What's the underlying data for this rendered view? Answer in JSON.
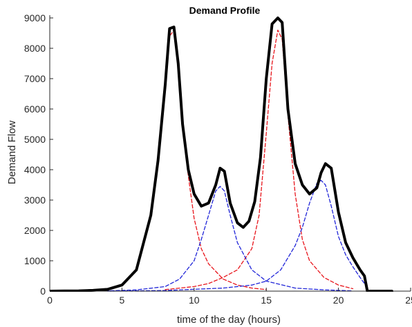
{
  "chart_data": {
    "type": "line",
    "title": "Demand Profile",
    "xlabel": "time of the day (hours)",
    "ylabel": "Demand Flow",
    "xlim": [
      0,
      25
    ],
    "ylim": [
      0,
      9000
    ],
    "xticks": [
      0,
      5,
      10,
      15,
      20,
      25
    ],
    "yticks": [
      0,
      1000,
      2000,
      3000,
      4000,
      5000,
      6000,
      7000,
      8000,
      9000
    ],
    "xtick_labels": [
      "0",
      "5",
      "10",
      "15",
      "20",
      "25"
    ],
    "ytick_labels": [
      "0",
      "1000",
      "2000",
      "3000",
      "4000",
      "5000",
      "6000",
      "7000",
      "8000",
      "9000"
    ],
    "grid": false,
    "colors": {
      "total": "#000000",
      "peak_components": "#e8141b",
      "midday_components": "#1f24d8"
    },
    "series": [
      {
        "style": "solid",
        "color": "#000000",
        "x": [
          0,
          1,
          2,
          3,
          4,
          5,
          6,
          7,
          7.5,
          8,
          8.3,
          8.6,
          8.9,
          9.2,
          9.6,
          10,
          10.5,
          11,
          11.5,
          11.8,
          12.1,
          12.5,
          13,
          13.4,
          13.8,
          14.2,
          14.6,
          15,
          15.4,
          15.8,
          16.1,
          16.5,
          17,
          17.5,
          18,
          18.5,
          18.8,
          19.1,
          19.5,
          20,
          20.5,
          21,
          21.5,
          21.8,
          22,
          23.7
        ],
        "y": [
          0,
          5,
          10,
          25,
          60,
          200,
          700,
          2500,
          4300,
          6800,
          8650,
          8700,
          7500,
          5500,
          4000,
          3200,
          2800,
          2900,
          3500,
          4050,
          3950,
          2900,
          2250,
          2100,
          2300,
          2950,
          4400,
          7000,
          8800,
          9000,
          8850,
          6000,
          4200,
          3500,
          3200,
          3400,
          3900,
          4200,
          4050,
          2600,
          1600,
          1100,
          700,
          500,
          0,
          0
        ]
      },
      {
        "style": "dashed",
        "color": "#e8141b",
        "x": [
          0,
          2,
          4,
          5,
          6,
          7,
          7.5,
          8,
          8.3,
          8.6,
          8.9,
          9.2,
          9.6,
          10,
          10.5,
          11,
          12,
          13,
          14,
          15
        ],
        "y": [
          0,
          5,
          60,
          200,
          700,
          2500,
          4300,
          6800,
          8400,
          8600,
          7500,
          5500,
          3800,
          2400,
          1400,
          900,
          400,
          200,
          100,
          50
        ]
      },
      {
        "style": "dashed",
        "color": "#e8141b",
        "x": [
          8,
          9,
          10,
          11,
          12,
          13,
          14,
          14.5,
          15,
          15.4,
          15.8,
          16.1,
          16.5,
          17,
          17.5,
          18,
          19,
          20,
          21
        ],
        "y": [
          50,
          100,
          150,
          250,
          450,
          700,
          1400,
          2500,
          5200,
          7500,
          8600,
          8300,
          5800,
          3200,
          1700,
          1000,
          450,
          200,
          80
        ]
      },
      {
        "style": "dashed",
        "color": "#1f24d8",
        "x": [
          0,
          4,
          6,
          8,
          9,
          10,
          10.5,
          11,
          11.5,
          11.8,
          12.1,
          12.5,
          13,
          14,
          15,
          17,
          19,
          21
        ],
        "y": [
          0,
          10,
          40,
          150,
          400,
          1000,
          1700,
          2500,
          3300,
          3450,
          3300,
          2500,
          1600,
          700,
          330,
          100,
          40,
          10
        ]
      },
      {
        "style": "dashed",
        "color": "#1f24d8",
        "x": [
          4,
          8,
          12,
          14,
          15,
          16,
          17,
          17.5,
          18,
          18.5,
          18.8,
          19.1,
          19.5,
          20,
          20.5,
          21,
          21.5,
          21.8
        ],
        "y": [
          0,
          20,
          100,
          200,
          330,
          700,
          1500,
          2100,
          2900,
          3550,
          3650,
          3500,
          2800,
          1800,
          1200,
          800,
          450,
          250
        ]
      }
    ]
  }
}
